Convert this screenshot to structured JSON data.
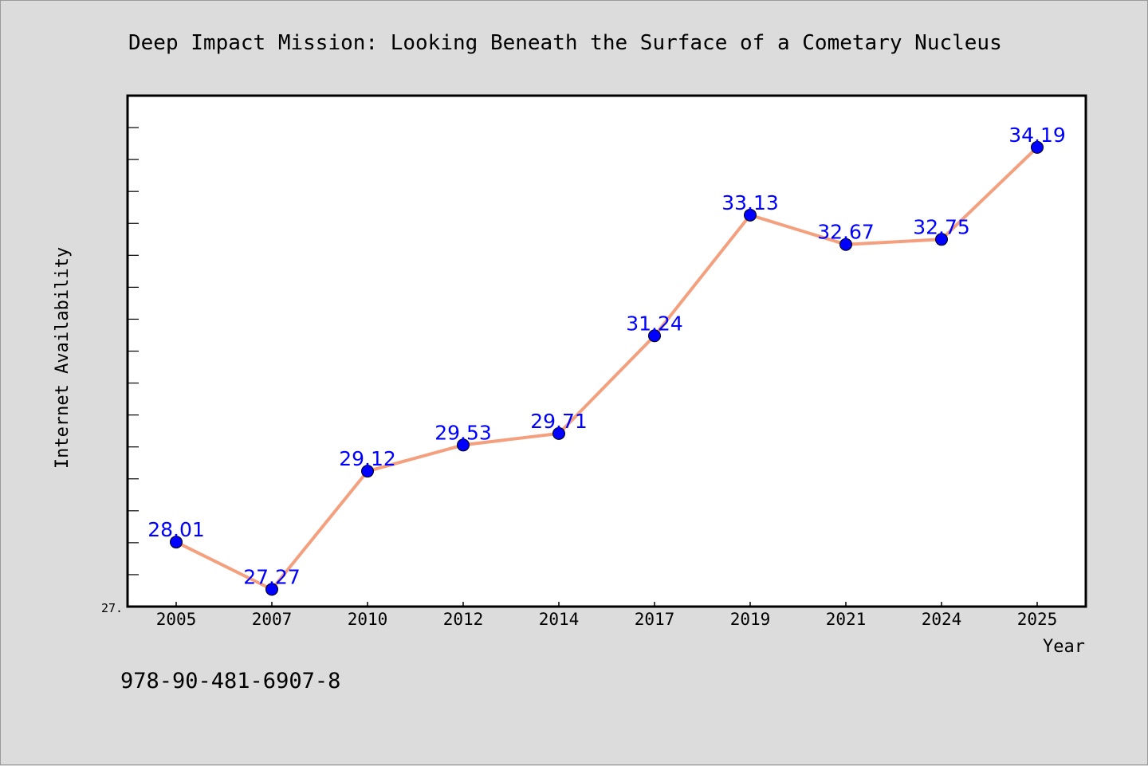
{
  "chart_data": {
    "type": "line",
    "title": "Deep Impact Mission: Looking Beneath the Surface of a Cometary Nucleus",
    "xlabel": "Year",
    "ylabel": "Internet Availability",
    "y_min_label": "27.",
    "categories": [
      "2005",
      "2007",
      "2010",
      "2012",
      "2014",
      "2017",
      "2019",
      "2021",
      "2024",
      "2025"
    ],
    "series": [
      {
        "values": [
          28.01,
          27.27,
          29.12,
          29.53,
          29.71,
          31.24,
          33.13,
          32.67,
          32.75,
          34.19
        ]
      }
    ],
    "data_labels": [
      "28.01",
      "27.27",
      "29.12",
      "29.53",
      "29.71",
      "31.24",
      "33.13",
      "32.67",
      "32.75",
      "34.19"
    ],
    "ylim": [
      27.0,
      35.0
    ],
    "grid": false,
    "legend": "none",
    "line_color": "#f4a07e",
    "marker_color": "#0000ff",
    "label_color": "#0000ff"
  },
  "footer": {
    "isbn": "978-90-481-6907-8"
  }
}
